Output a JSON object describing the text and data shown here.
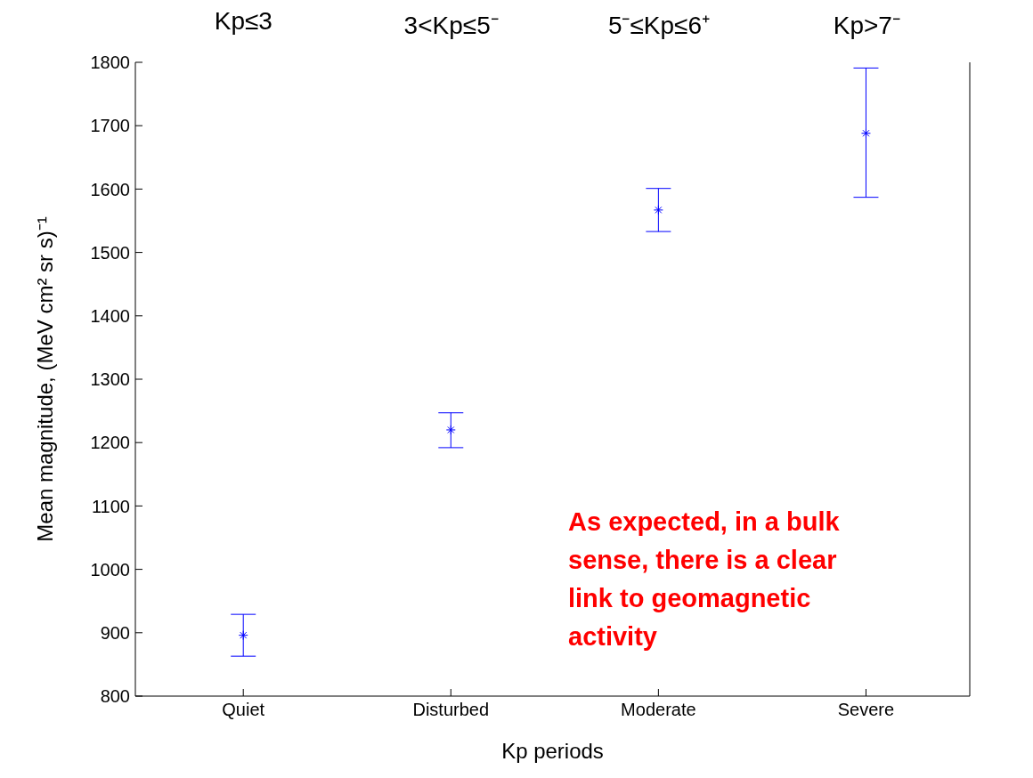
{
  "chart_data": {
    "type": "scatter",
    "xlabel": "Kp periods",
    "ylabel": "Mean magnitude, (MeV cm² sr s)⁻¹",
    "categories": [
      "Quiet",
      "Disturbed",
      "Moderate",
      "Severe"
    ],
    "series": [
      {
        "color": "#0000ff",
        "values": [
          896,
          1220,
          1567,
          1688
        ],
        "errors": [
          [
            863,
            929
          ],
          [
            1192,
            1247
          ],
          [
            1533,
            1601
          ],
          [
            1587,
            1791
          ]
        ]
      }
    ],
    "ylim": [
      800,
      1800
    ],
    "yticks": [
      800,
      900,
      1000,
      1100,
      1200,
      1300,
      1400,
      1500,
      1600,
      1700,
      1800
    ],
    "marker": "cross",
    "grid": false,
    "annotations": [
      "Kp≤3",
      "3<Kp≤5⁻",
      "5⁻≤Kp≤6⁺",
      "Kp>7⁻",
      "As expected, in a bulk sense, there is a clear link to geomagnetic activity"
    ]
  }
}
